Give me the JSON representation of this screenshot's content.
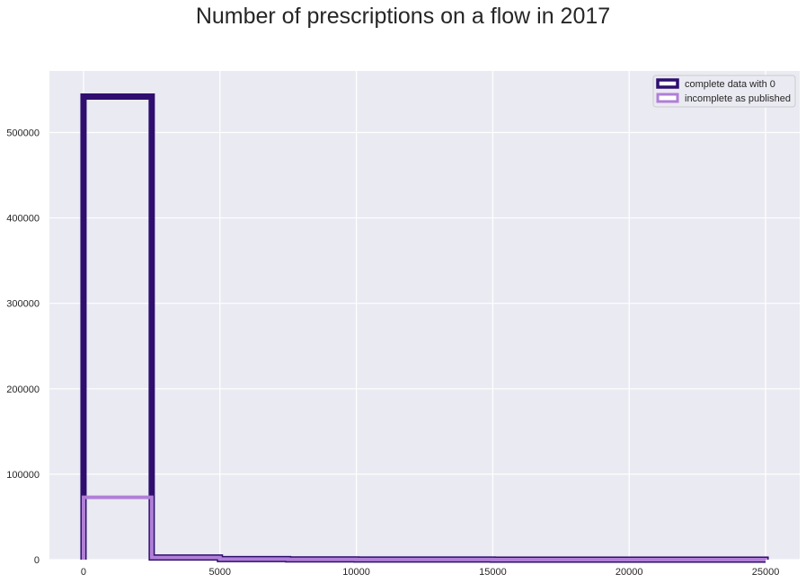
{
  "chart_data": {
    "type": "histogram",
    "title": "Number of prescriptions on a flow in 2017",
    "xlabel": "",
    "ylabel": "",
    "xlim": [
      -1250,
      26250
    ],
    "ylim": [
      0,
      572000
    ],
    "xticks": [
      0,
      5000,
      10000,
      15000,
      20000,
      25000
    ],
    "yticks": [
      0,
      100000,
      200000,
      300000,
      400000,
      500000
    ],
    "grid": true,
    "legend_position": "top-right",
    "bin_edges": [
      0,
      2500,
      5000,
      7500,
      10000,
      12500,
      15000,
      17500,
      20000,
      22500,
      25000
    ],
    "series": [
      {
        "name": "complete data with 0",
        "color": "#2e0e6e",
        "values": [
          542000,
          2500,
          600,
          250,
          120,
          70,
          40,
          25,
          15,
          10
        ]
      },
      {
        "name": "incomplete as published",
        "color": "#b07fd8",
        "values": [
          73000,
          2500,
          600,
          250,
          120,
          70,
          40,
          25,
          15,
          10
        ]
      }
    ]
  }
}
